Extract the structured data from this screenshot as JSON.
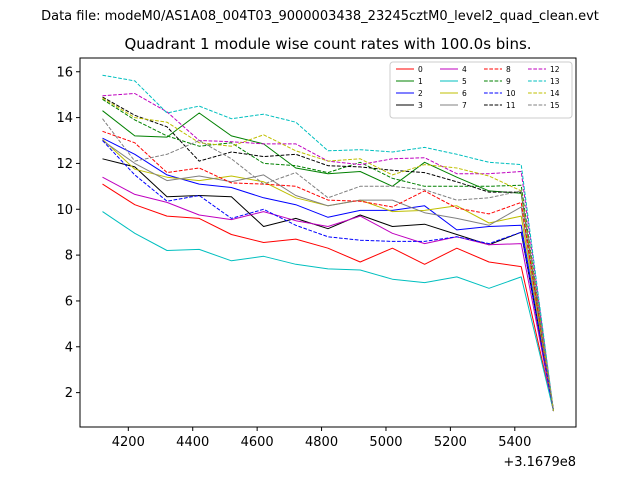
{
  "chart_data": {
    "type": "line",
    "supertitle": "Data file: modeM0/AS1A08_004T03_9000003438_23245cztM0_level2_quad_clean.evt",
    "title": "Quadrant 1 module wise count rates with 100.0s bins.",
    "xlabel": "",
    "ylabel": "",
    "x_offset_label": "+3.1679e8",
    "x": [
      4120,
      4220,
      4320,
      4420,
      4520,
      4620,
      4720,
      4820,
      4920,
      5020,
      5120,
      5220,
      5320,
      5420,
      5520
    ],
    "xlim": [
      4050,
      5590
    ],
    "ylim": [
      0.5,
      16.6
    ],
    "xticks": [
      4200,
      4400,
      4600,
      4800,
      5000,
      5200,
      5400
    ],
    "yticks": [
      2,
      4,
      6,
      8,
      10,
      12,
      14,
      16
    ],
    "grid": false,
    "legend_position": "top-right",
    "series": [
      {
        "name": "0",
        "color": "#ff0000",
        "dash": "solid",
        "values": [
          11.1,
          10.2,
          9.7,
          9.6,
          8.9,
          8.55,
          8.7,
          8.3,
          7.7,
          8.3,
          7.6,
          8.3,
          7.7,
          7.5,
          1.2
        ]
      },
      {
        "name": "1",
        "color": "#008000",
        "dash": "solid",
        "values": [
          14.3,
          13.2,
          13.15,
          14.2,
          13.2,
          12.85,
          11.8,
          11.55,
          11.65,
          11.0,
          12.05,
          11.4,
          10.8,
          10.7,
          1.2
        ]
      },
      {
        "name": "2",
        "color": "#0000ff",
        "dash": "solid",
        "values": [
          13.1,
          12.4,
          11.5,
          11.1,
          10.95,
          10.5,
          10.2,
          9.65,
          9.95,
          9.95,
          10.15,
          9.1,
          9.25,
          9.3,
          1.2
        ]
      },
      {
        "name": "3",
        "color": "#000000",
        "dash": "solid",
        "values": [
          12.2,
          11.85,
          10.55,
          10.6,
          10.55,
          9.25,
          9.6,
          9.15,
          9.75,
          9.25,
          9.35,
          8.9,
          8.45,
          9.0,
          1.2
        ]
      },
      {
        "name": "4",
        "color": "#bf00bf",
        "dash": "solid",
        "values": [
          11.4,
          10.65,
          10.3,
          9.75,
          9.55,
          9.9,
          9.5,
          9.25,
          9.7,
          8.95,
          8.5,
          8.8,
          8.45,
          8.5,
          1.2
        ]
      },
      {
        "name": "5",
        "color": "#00bfbf",
        "dash": "solid",
        "values": [
          9.9,
          8.95,
          8.2,
          8.25,
          7.75,
          7.95,
          7.6,
          7.4,
          7.35,
          6.95,
          6.8,
          7.05,
          6.55,
          7.05,
          1.2
        ]
      },
      {
        "name": "6",
        "color": "#bfbf00",
        "dash": "solid",
        "values": [
          13.05,
          11.75,
          11.4,
          11.25,
          11.45,
          11.2,
          10.5,
          10.15,
          10.4,
          9.9,
          9.95,
          10.15,
          9.4,
          9.7,
          1.2
        ]
      },
      {
        "name": "7",
        "color": "#808080",
        "dash": "solid",
        "values": [
          13.0,
          12.0,
          11.25,
          11.45,
          11.2,
          11.5,
          10.6,
          10.15,
          10.4,
          10.4,
          9.85,
          9.6,
          9.3,
          10.1,
          1.2
        ]
      },
      {
        "name": "8",
        "color": "#ff0000",
        "dash": "dashed",
        "values": [
          13.4,
          12.9,
          11.6,
          11.8,
          11.15,
          11.1,
          11.0,
          10.4,
          10.35,
          10.1,
          10.8,
          10.05,
          9.8,
          10.3,
          1.2
        ]
      },
      {
        "name": "9",
        "color": "#008000",
        "dash": "dashed",
        "values": [
          14.8,
          13.9,
          13.2,
          12.75,
          12.9,
          12.0,
          11.9,
          11.6,
          12.05,
          11.35,
          11.0,
          11.0,
          11.0,
          11.05,
          1.2
        ]
      },
      {
        "name": "10",
        "color": "#0000ff",
        "dash": "dashed",
        "values": [
          13.0,
          11.5,
          10.35,
          10.6,
          9.6,
          10.0,
          9.3,
          8.8,
          8.65,
          8.6,
          8.6,
          8.8,
          8.5,
          9.0,
          1.2
        ]
      },
      {
        "name": "11",
        "color": "#000000",
        "dash": "dashed",
        "values": [
          14.9,
          14.1,
          13.6,
          12.1,
          12.5,
          12.3,
          12.4,
          11.9,
          11.85,
          11.7,
          11.6,
          11.2,
          10.75,
          10.75,
          1.2
        ]
      },
      {
        "name": "12",
        "color": "#bf00bf",
        "dash": "dashed",
        "values": [
          14.95,
          15.05,
          14.25,
          13.0,
          12.95,
          12.85,
          12.85,
          12.1,
          11.95,
          12.2,
          12.25,
          11.55,
          11.55,
          11.65,
          1.2
        ]
      },
      {
        "name": "13",
        "color": "#00bfbf",
        "dash": "dashed",
        "values": [
          15.85,
          15.6,
          14.2,
          14.5,
          13.95,
          14.15,
          13.8,
          12.55,
          12.6,
          12.5,
          12.7,
          12.4,
          12.05,
          11.95,
          1.2
        ]
      },
      {
        "name": "14",
        "color": "#bfbf00",
        "dash": "dashed",
        "values": [
          14.85,
          14.0,
          13.8,
          12.9,
          12.75,
          13.25,
          12.55,
          12.1,
          12.2,
          11.5,
          11.95,
          11.8,
          11.45,
          10.8,
          1.2
        ]
      },
      {
        "name": "15",
        "color": "#808080",
        "dash": "dashed",
        "values": [
          13.95,
          12.1,
          12.4,
          13.0,
          12.2,
          11.1,
          11.6,
          10.5,
          11.0,
          11.0,
          10.85,
          10.4,
          10.5,
          10.8,
          1.2
        ]
      }
    ]
  }
}
